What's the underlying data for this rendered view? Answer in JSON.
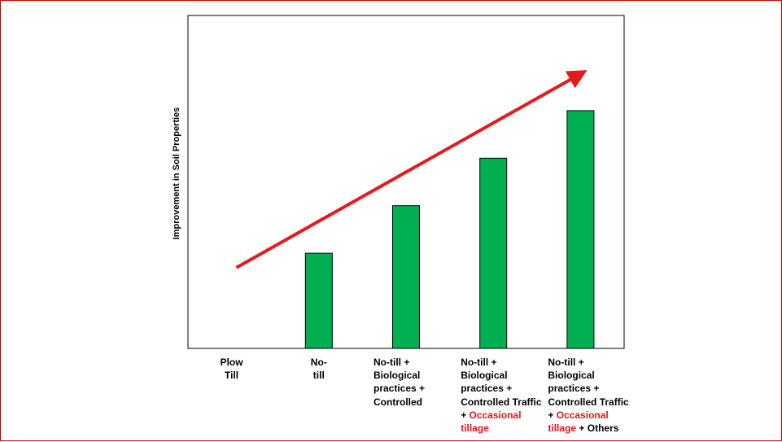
{
  "chart_data": {
    "type": "bar",
    "ylabel": "Improvement in Soil Properties",
    "categories": [
      "Plow Till",
      "No-till",
      "No-till + Biological practices + Controlled",
      "No-till + Biological practices + Controlled Traffic + Occasional tillage",
      "No-till + Biological practices + Controlled Traffic + Occasional tillage + Others"
    ],
    "values": [
      0,
      1.0,
      1.5,
      2.0,
      2.5
    ],
    "ylim": [
      0,
      3.5
    ],
    "bar_color": "#00b050",
    "trend_arrow": {
      "color": "#e41a1c",
      "from": {
        "category_index": 0,
        "y": 0.85
      },
      "to": {
        "category_index": 4,
        "y": 2.9
      }
    },
    "grid": false,
    "legend": "none"
  },
  "labels": [
    {
      "lines": [
        [
          {
            "t": "Plow",
            "c": "k"
          }
        ],
        [
          {
            "t": "Till",
            "c": "k"
          }
        ]
      ]
    },
    {
      "lines": [
        [
          {
            "t": "No-",
            "c": "k"
          }
        ],
        [
          {
            "t": "till",
            "c": "k"
          }
        ]
      ]
    },
    {
      "lines": [
        [
          {
            "t": "No-till +",
            "c": "k"
          }
        ],
        [
          {
            "t": "Biological",
            "c": "k"
          }
        ],
        [
          {
            "t": "practices +",
            "c": "k"
          }
        ],
        [
          {
            "t": "Controlled",
            "c": "k"
          }
        ]
      ]
    },
    {
      "lines": [
        [
          {
            "t": "No-till +",
            "c": "k"
          }
        ],
        [
          {
            "t": "Biological",
            "c": "k"
          }
        ],
        [
          {
            "t": "practices +",
            "c": "k"
          }
        ],
        [
          {
            "t": "Controlled Traffic",
            "c": "k"
          }
        ],
        [
          {
            "t": "+ ",
            "c": "k"
          },
          {
            "t": "Occasional",
            "c": "r"
          }
        ],
        [
          {
            "t": "tillage",
            "c": "r"
          }
        ]
      ]
    },
    {
      "lines": [
        [
          {
            "t": "No-till +",
            "c": "k"
          }
        ],
        [
          {
            "t": "Biological",
            "c": "k"
          }
        ],
        [
          {
            "t": "practices +",
            "c": "k"
          }
        ],
        [
          {
            "t": "Controlled Traffic",
            "c": "k"
          }
        ],
        [
          {
            "t": "+ ",
            "c": "k"
          },
          {
            "t": "Occasional",
            "c": "r"
          }
        ],
        [
          {
            "t": "tillage",
            "c": "r"
          },
          {
            "t": " + Others",
            "c": "k"
          }
        ]
      ]
    }
  ]
}
